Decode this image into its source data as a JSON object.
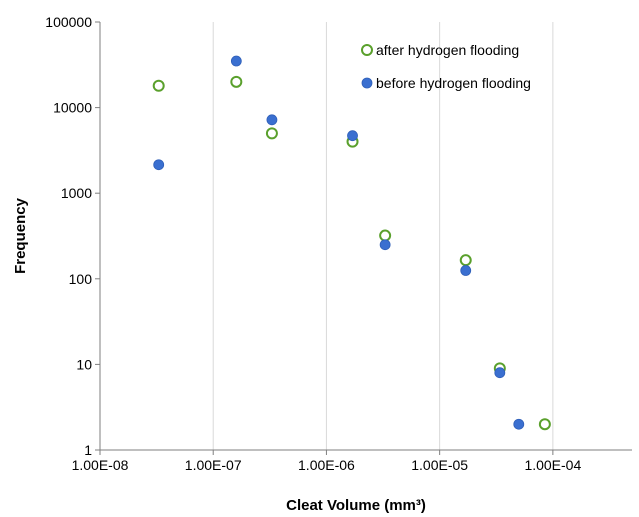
{
  "chart_data": {
    "type": "scatter",
    "title": "",
    "xlabel": "Cleat Volume (mm³)",
    "ylabel": "Frequency",
    "xscale": "log",
    "yscale": "log",
    "xlim": [
      1e-08,
      0.0005
    ],
    "ylim": [
      1,
      100000
    ],
    "x_tick_labels": [
      "1.00E-08",
      "1.00E-07",
      "1.00E-06",
      "1.00E-05",
      "1.00E-04"
    ],
    "x_tick_values": [
      1e-08,
      1e-07,
      1e-06,
      1e-05,
      0.0001
    ],
    "y_tick_labels": [
      "1",
      "10",
      "100",
      "1000",
      "10000",
      "100000"
    ],
    "y_tick_values": [
      1,
      10,
      100,
      1000,
      10000,
      100000
    ],
    "grid": "vertical",
    "legend_position": "top-right",
    "series": [
      {
        "name": "after hydrogen flooding",
        "color": "#5aa02c",
        "marker": "hollow-circle",
        "points": [
          {
            "x": 3.3e-08,
            "y": 18000
          },
          {
            "x": 1.6e-07,
            "y": 20000
          },
          {
            "x": 3.3e-07,
            "y": 5000
          },
          {
            "x": 1.7e-06,
            "y": 4000
          },
          {
            "x": 3.3e-06,
            "y": 320
          },
          {
            "x": 1.7e-05,
            "y": 165
          },
          {
            "x": 3.4e-05,
            "y": 9
          },
          {
            "x": 8.5e-05,
            "y": 2
          }
        ]
      },
      {
        "name": "before hydrogen flooding",
        "color": "#3a6fd0",
        "marker": "filled-circle",
        "points": [
          {
            "x": 3.3e-08,
            "y": 2150
          },
          {
            "x": 1.6e-07,
            "y": 35000
          },
          {
            "x": 3.3e-07,
            "y": 7200
          },
          {
            "x": 1.7e-06,
            "y": 4700
          },
          {
            "x": 3.3e-06,
            "y": 250
          },
          {
            "x": 1.7e-05,
            "y": 125
          },
          {
            "x": 3.4e-05,
            "y": 8
          },
          {
            "x": 5e-05,
            "y": 2
          }
        ]
      }
    ]
  }
}
